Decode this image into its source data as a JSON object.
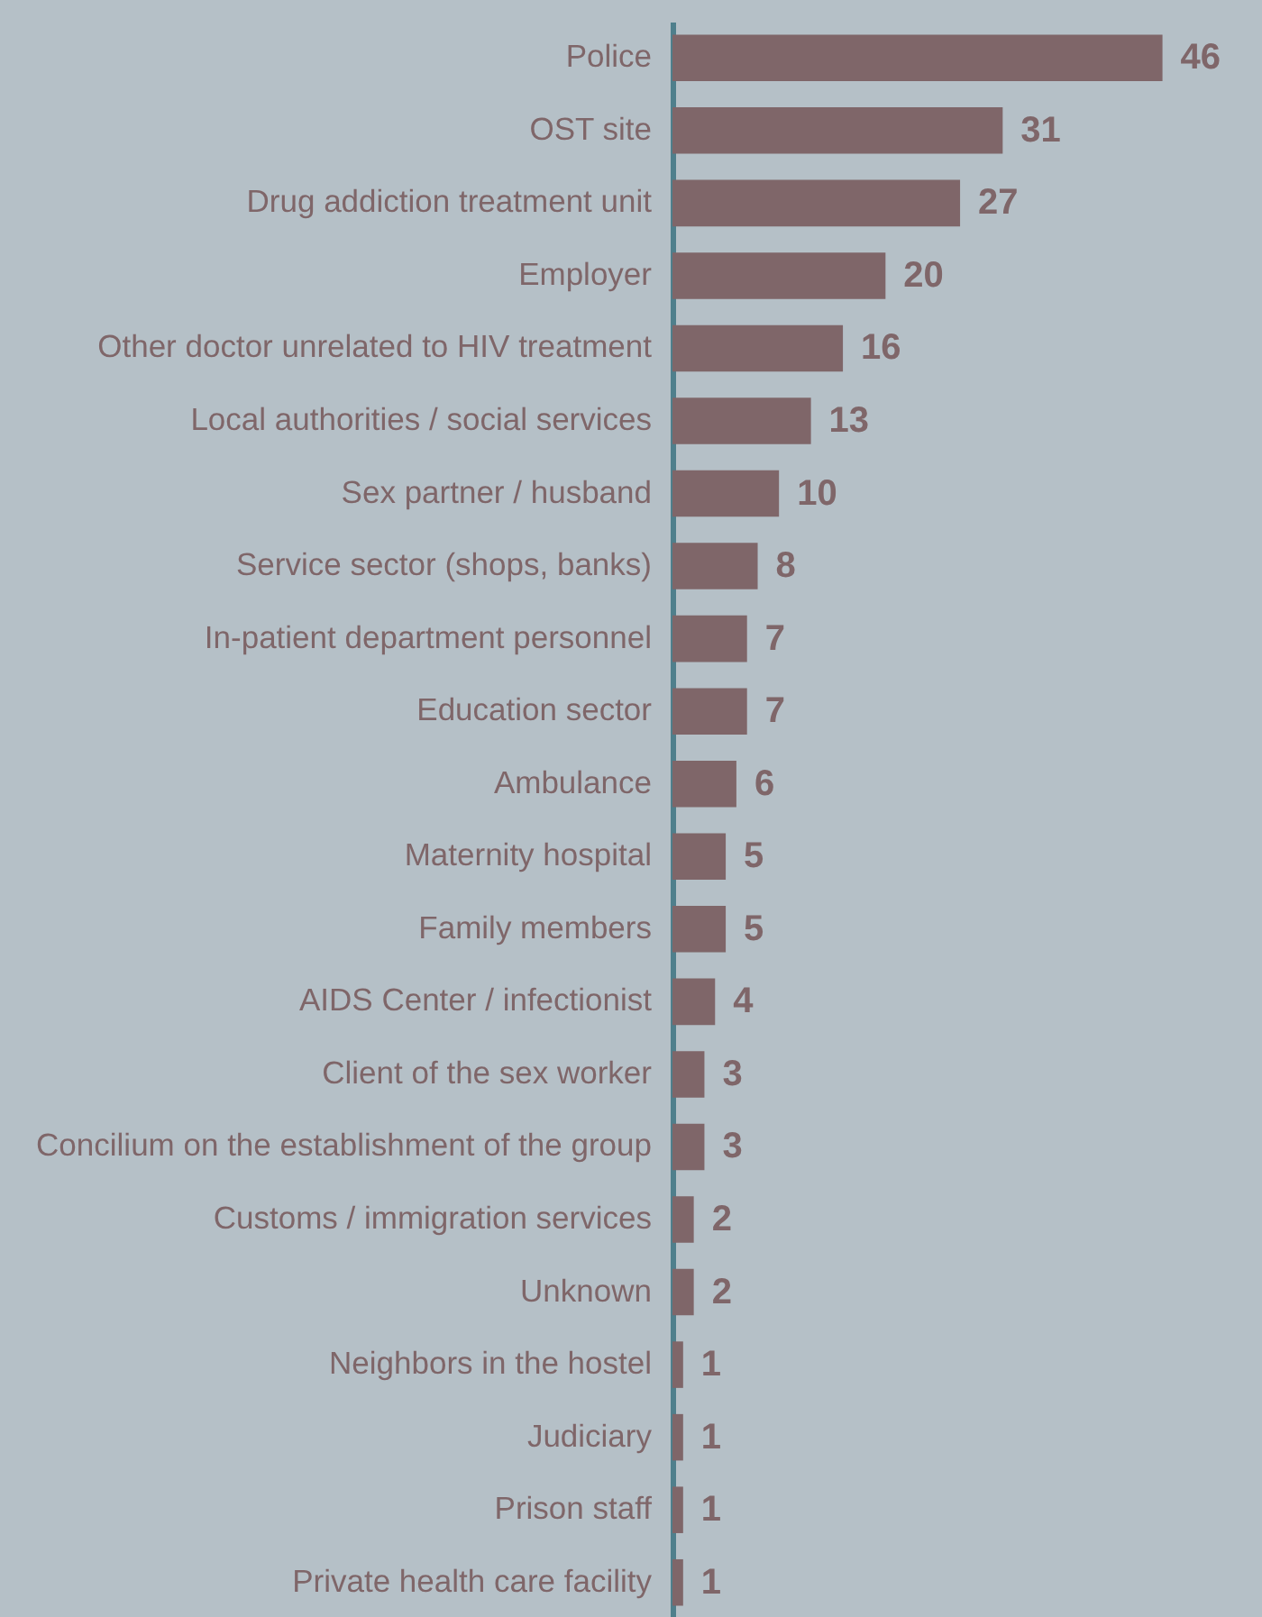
{
  "chart_data": {
    "type": "bar",
    "orientation": "horizontal",
    "data_labels": true,
    "tick_labels": "y",
    "color": "#7f6669",
    "categories": [
      "Police",
      "OST site",
      "Drug addiction treatment unit",
      "Employer",
      "Other doctor unrelated to HIV treatment",
      "Local authorities / social services",
      "Sex partner / husband",
      "Service sector (shops, banks)",
      "In-patient department personnel",
      "Education sector",
      "Ambulance",
      "Maternity hospital",
      "Family members",
      "AIDS Center / infectionist",
      "Client of the sex worker",
      "Concilium on the establishment of the group",
      "Customs / immigration services",
      "Unknown",
      "Neighbors in the hostel",
      "Judiciary",
      "Prison staff",
      "Private health care facility"
    ],
    "values": [
      46,
      31,
      27,
      20,
      16,
      13,
      10,
      8,
      7,
      7,
      6,
      5,
      5,
      4,
      3,
      3,
      2,
      2,
      1,
      1,
      1,
      1
    ]
  }
}
